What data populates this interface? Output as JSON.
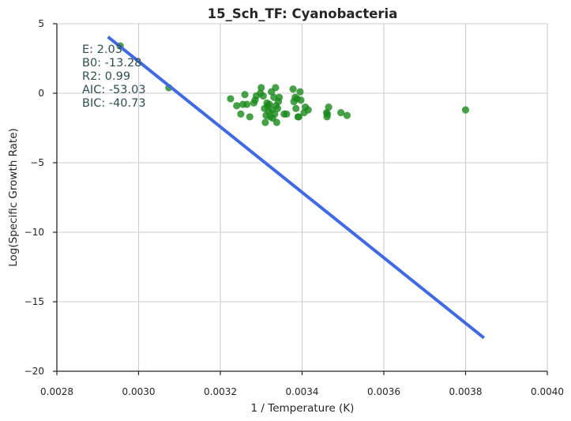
{
  "chart_data": {
    "type": "scatter",
    "title": "15_Sch_TF: Cyanobacteria",
    "xlabel": "1 / Temperature (K)",
    "ylabel": "Log(Specific Growth Rate)",
    "xlim": [
      0.0028,
      0.004
    ],
    "ylim": [
      -20,
      5
    ],
    "x_ticks": [
      "0.0028",
      "0.0030",
      "0.0032",
      "0.0034",
      "0.0036",
      "0.0038",
      "0.0040"
    ],
    "y_ticks": [
      "5",
      "0",
      "−5",
      "−10",
      "−15",
      "−20"
    ],
    "grid": true,
    "annotations": [
      "E:  2.03",
      "B0:  -13.28",
      "R2:  0.99",
      "AIC: -53.03",
      "BIC: -40.73"
    ],
    "colors": {
      "points": "#1a8a1a",
      "fit_line": "#4169e1"
    },
    "series": [
      {
        "type": "scatter",
        "points": [
          [
            0.002955,
            3.4
          ],
          [
            0.003074,
            0.4
          ],
          [
            0.003225,
            -0.4
          ],
          [
            0.00324,
            -0.9
          ],
          [
            0.00325,
            -1.5
          ],
          [
            0.003255,
            -0.8
          ],
          [
            0.00326,
            -0.1
          ],
          [
            0.003265,
            -0.8
          ],
          [
            0.003272,
            -1.7
          ],
          [
            0.003282,
            -0.7
          ],
          [
            0.003285,
            -0.5
          ],
          [
            0.003288,
            -0.2
          ],
          [
            0.003298,
            0.0
          ],
          [
            0.0033,
            0.4
          ],
          [
            0.003305,
            -0.2
          ],
          [
            0.003308,
            -1.1
          ],
          [
            0.00331,
            -2.1
          ],
          [
            0.003312,
            -1.6
          ],
          [
            0.003314,
            -0.7
          ],
          [
            0.003316,
            -0.9
          ],
          [
            0.003318,
            -1.3
          ],
          [
            0.00332,
            -0.8
          ],
          [
            0.003322,
            -1.7
          ],
          [
            0.003325,
            0.1
          ],
          [
            0.003326,
            -1.2
          ],
          [
            0.003328,
            -1.8
          ],
          [
            0.003331,
            -0.3
          ],
          [
            0.003333,
            -1.5
          ],
          [
            0.003335,
            0.4
          ],
          [
            0.003336,
            -0.9
          ],
          [
            0.003338,
            -2.1
          ],
          [
            0.00334,
            -1.1
          ],
          [
            0.003342,
            -0.6
          ],
          [
            0.003344,
            -0.3
          ],
          [
            0.003356,
            -1.5
          ],
          [
            0.003362,
            -1.5
          ],
          [
            0.003378,
            0.3
          ],
          [
            0.00338,
            -0.6
          ],
          [
            0.003383,
            -0.3
          ],
          [
            0.003385,
            -1.1
          ],
          [
            0.003388,
            -0.4
          ],
          [
            0.00339,
            -1.7
          ],
          [
            0.003392,
            -1.7
          ],
          [
            0.003395,
            0.1
          ],
          [
            0.003397,
            -0.5
          ],
          [
            0.003405,
            -1.4
          ],
          [
            0.003408,
            -1.0
          ],
          [
            0.003415,
            -1.2
          ],
          [
            0.00346,
            -1.4
          ],
          [
            0.003461,
            -1.7
          ],
          [
            0.003462,
            -1.5
          ],
          [
            0.003465,
            -1.0
          ],
          [
            0.003495,
            -1.4
          ],
          [
            0.00351,
            -1.6
          ],
          [
            0.0038,
            -1.2
          ]
        ]
      },
      {
        "type": "line",
        "points": [
          [
            0.002925,
            4.05
          ],
          [
            0.003845,
            -17.6
          ]
        ]
      }
    ]
  }
}
